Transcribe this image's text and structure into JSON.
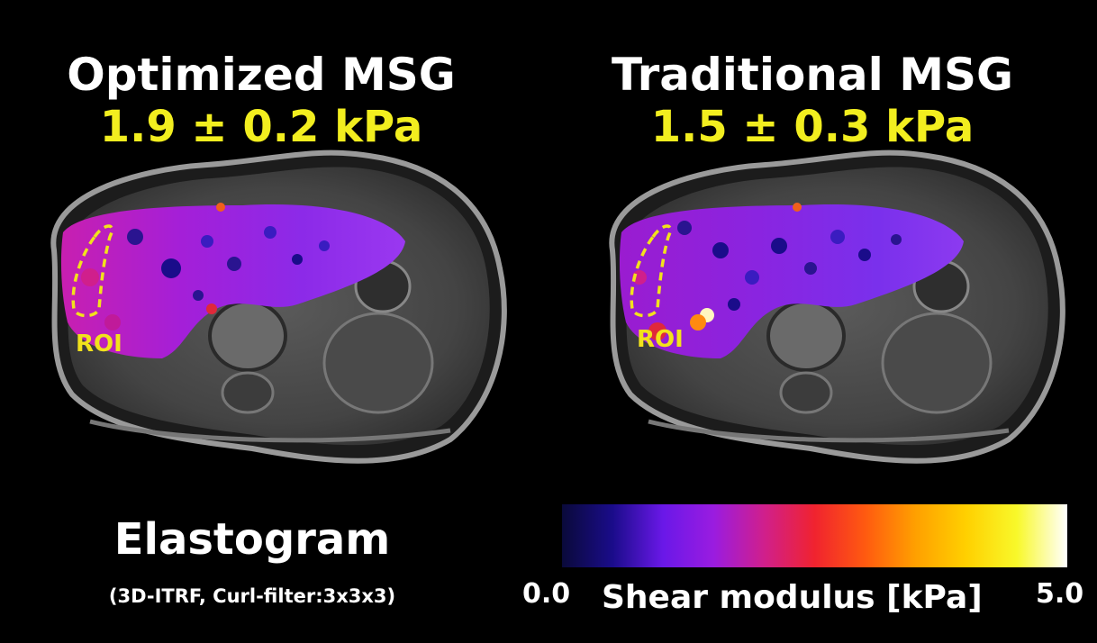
{
  "panels": [
    {
      "title": "Optimized MSG",
      "value": "1.9 ± 0.2 kPa",
      "roi_label": "ROI"
    },
    {
      "title": "Traditional MSG",
      "value": "1.5 ± 0.3 kPa",
      "roi_label": "ROI"
    }
  ],
  "caption": {
    "title": "Elastogram",
    "subtitle": "(3D-ITRF, Curl-filter:3x3x3)"
  },
  "colorbar": {
    "label": "Shear modulus [kPa]",
    "min_label": "0.0",
    "max_label": "5.0",
    "colors": [
      "#0a0a3a",
      "#1a0c8a",
      "#6a18e8",
      "#9a1ce0",
      "#d01f8c",
      "#f0232f",
      "#ff5a10",
      "#ffa000",
      "#ffd000",
      "#f8f82a",
      "#ffffff"
    ]
  }
}
